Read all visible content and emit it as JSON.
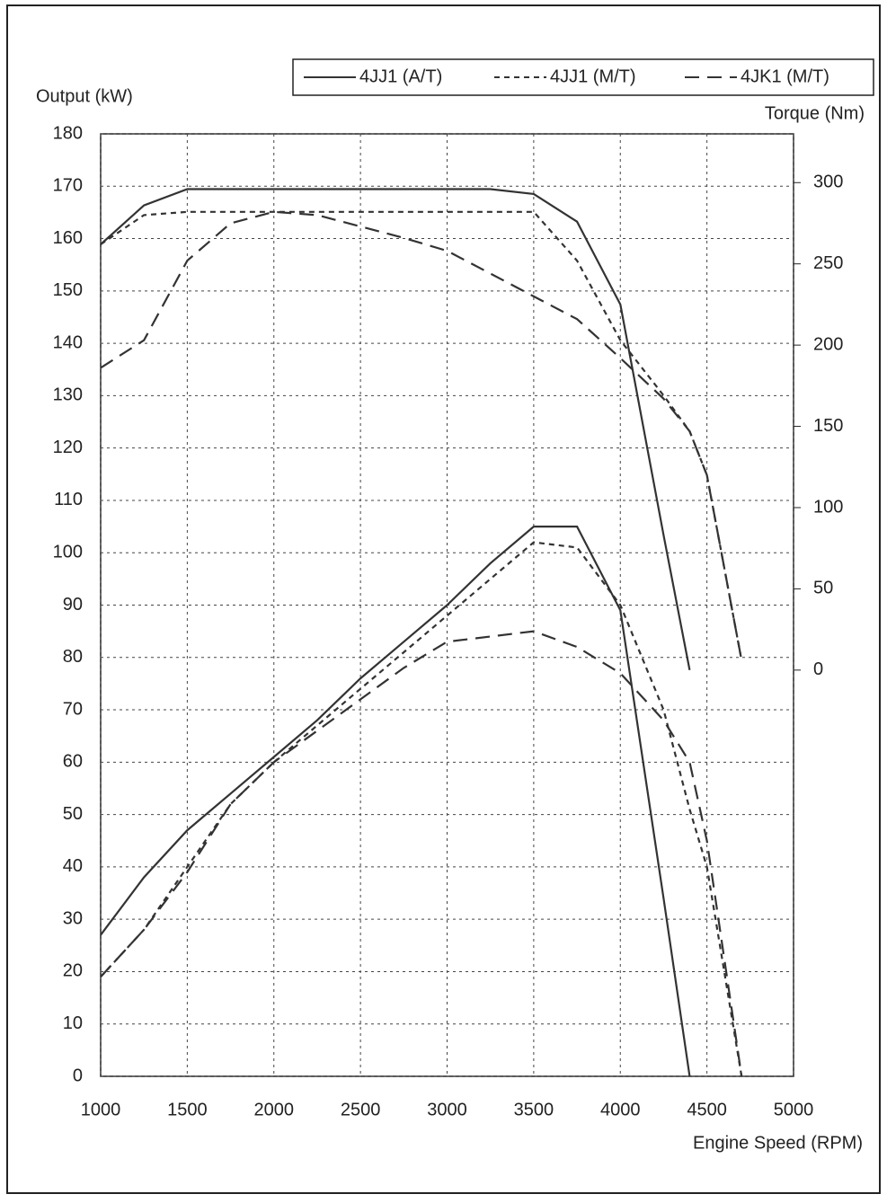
{
  "chart_data": {
    "type": "line",
    "legend_title": null,
    "ylabel": "Output (kW)",
    "y2label": "Torque (Nm)",
    "xlabel": "Engine Speed (RPM)",
    "x": [
      1000,
      1250,
      1500,
      1750,
      2000,
      2250,
      2500,
      2750,
      3000,
      3250,
      3500,
      3750,
      4000,
      4250,
      4400,
      4500,
      4700
    ],
    "xlim": [
      1000,
      5000
    ],
    "xticks": [
      1000,
      1500,
      2000,
      2500,
      3000,
      3500,
      4000,
      4500,
      5000
    ],
    "ylim": [
      0,
      180
    ],
    "yticks": [
      0,
      10,
      20,
      30,
      40,
      50,
      60,
      70,
      80,
      90,
      100,
      110,
      120,
      130,
      140,
      150,
      160,
      170,
      180
    ],
    "y2lim": [
      -250,
      330
    ],
    "y2ticks": [
      0,
      50,
      100,
      150,
      200,
      250,
      300
    ],
    "grid": true,
    "legend": "top-right",
    "series": [
      {
        "name": "4JJ1 (A/T)",
        "color": "#333333",
        "dash": "none",
        "values": [
          27,
          38,
          47,
          54,
          61,
          68,
          76,
          83,
          90,
          98,
          105,
          105,
          89,
          34,
          0,
          null,
          null
        ],
        "torque_values": [
          262,
          286,
          296,
          296,
          296,
          296,
          296,
          296,
          296,
          296,
          293,
          276,
          225,
          83,
          0,
          null,
          null
        ]
      },
      {
        "name": "4JJ1 (M/T)",
        "color": "#333333",
        "dash": "6 5",
        "values": [
          19,
          28,
          40,
          52,
          60,
          67,
          74,
          81,
          88,
          95,
          102,
          101,
          90,
          70,
          51,
          40,
          0
        ],
        "torque_values": [
          262,
          280,
          282,
          282,
          282,
          282,
          282,
          282,
          282,
          282,
          282,
          252,
          203,
          169,
          147,
          120,
          6
        ]
      },
      {
        "name": "4JK1 (M/T)",
        "color": "#333333",
        "dash": "16 9",
        "values": [
          19,
          28,
          39,
          52,
          60,
          66,
          72,
          78,
          83,
          84,
          85,
          82,
          77,
          68,
          60,
          45,
          0
        ],
        "torque_values": [
          186,
          203,
          252,
          275,
          282,
          280,
          273,
          266,
          258,
          244,
          230,
          216,
          192,
          167,
          147,
          120,
          6
        ]
      }
    ]
  }
}
